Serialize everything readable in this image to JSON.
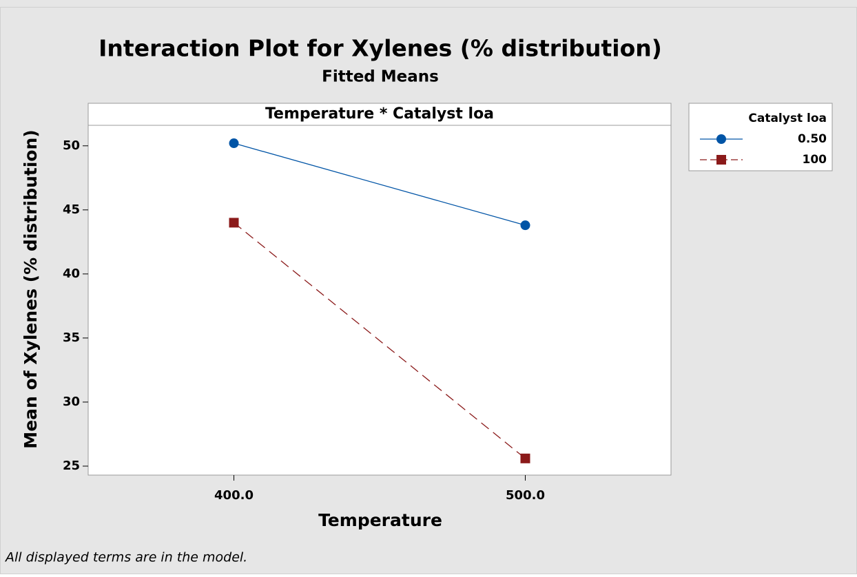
{
  "chart_data": {
    "type": "line",
    "title": "Interaction Plot for Xylenes (% distribution)",
    "subtitle": "Fitted Means",
    "panel_label": "Temperature * Catalyst loa",
    "xlabel": "Temperature",
    "ylabel": "Mean of Xylenes (% distribution)",
    "x": [
      400,
      500
    ],
    "xlim": [
      350,
      550
    ],
    "xticks": [
      {
        "value": 400,
        "label": "400.0"
      },
      {
        "value": 500,
        "label": "500.0"
      }
    ],
    "ylim": [
      24.3,
      51.6
    ],
    "yticks": [
      25,
      30,
      35,
      40,
      45,
      50
    ],
    "legend_title": "Catalyst loa",
    "legend_position": "right",
    "series": [
      {
        "name": "0.50",
        "color": "#0054a6",
        "marker": "circle",
        "dash": "solid",
        "values": [
          50.2,
          43.8
        ]
      },
      {
        "name": "100",
        "color": "#8b1a1a",
        "marker": "square",
        "dash": "dashed",
        "values": [
          44.0,
          25.6
        ]
      }
    ],
    "footnote": "All displayed terms are in the model."
  }
}
